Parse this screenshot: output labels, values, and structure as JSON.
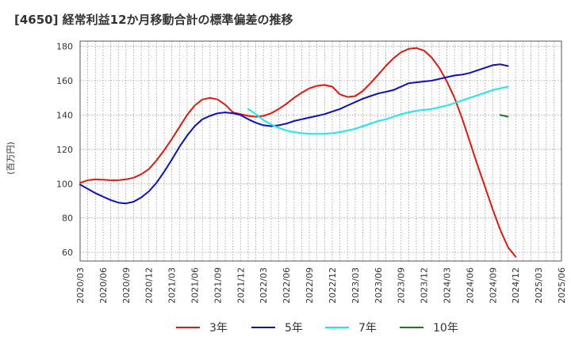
{
  "chart_data": {
    "type": "line",
    "title": "[4650]  経常利益12か月移動合計の標準偏差の推移",
    "ylabel": "(百万円)",
    "xlabel": "",
    "ylim": [
      55,
      183
    ],
    "yticks": [
      60,
      80,
      100,
      120,
      140,
      160,
      180
    ],
    "x": [
      "2020/03",
      "2020/04",
      "2020/05",
      "2020/06",
      "2020/07",
      "2020/08",
      "2020/09",
      "2020/10",
      "2020/11",
      "2020/12",
      "2021/01",
      "2021/02",
      "2021/03",
      "2021/04",
      "2021/05",
      "2021/06",
      "2021/07",
      "2021/08",
      "2021/09",
      "2021/10",
      "2021/11",
      "2021/12",
      "2022/01",
      "2022/02",
      "2022/03",
      "2022/04",
      "2022/05",
      "2022/06",
      "2022/07",
      "2022/08",
      "2022/09",
      "2022/10",
      "2022/11",
      "2022/12",
      "2023/01",
      "2023/02",
      "2023/03",
      "2023/04",
      "2023/05",
      "2023/06",
      "2023/07",
      "2023/08",
      "2023/09",
      "2023/10",
      "2023/11",
      "2023/12",
      "2024/01",
      "2024/02",
      "2024/03",
      "2024/04",
      "2024/05",
      "2024/06",
      "2024/07",
      "2024/08",
      "2024/09",
      "2024/10",
      "2024/11",
      "2024/12",
      "2025/01",
      "2025/02",
      "2025/03",
      "2025/04",
      "2025/05",
      "2025/06"
    ],
    "xticks": [
      "2020/03",
      "2020/06",
      "2020/09",
      "2020/12",
      "2021/03",
      "2021/06",
      "2021/09",
      "2021/12",
      "2022/03",
      "2022/06",
      "2022/09",
      "2022/12",
      "2023/03",
      "2023/06",
      "2023/09",
      "2023/12",
      "2024/03",
      "2024/06",
      "2024/09",
      "2024/12",
      "2025/03",
      "2025/06"
    ],
    "grid": true,
    "legend_position": "bottom",
    "series": [
      {
        "name": "3年",
        "color": "#e8160c",
        "values": [
          100.5,
          102,
          102.5,
          102.3,
          102,
          102,
          102.5,
          103.5,
          105.5,
          108.5,
          113.5,
          119.5,
          126,
          133,
          140,
          145.5,
          149,
          150,
          149,
          146,
          141.5,
          140.5,
          139.5,
          139,
          139.5,
          141,
          143.5,
          146.5,
          150,
          153,
          155.5,
          157,
          157.5,
          156.5,
          152,
          150.5,
          151,
          154,
          158.5,
          163.5,
          168.5,
          173,
          176.5,
          178.5,
          179,
          177.5,
          173.5,
          167.5,
          159.5,
          150,
          138,
          124.5,
          111,
          98,
          85,
          73,
          63,
          57.5,
          null,
          null,
          null,
          null,
          null,
          null
        ]
      },
      {
        "name": "5年",
        "color": "#0b10c3",
        "values": [
          99.5,
          97,
          94.5,
          92.5,
          90.5,
          89,
          88.5,
          89.5,
          92,
          95.5,
          100.5,
          107,
          114,
          121.5,
          128,
          133.5,
          137.5,
          139.5,
          141,
          141.5,
          141,
          140,
          137.5,
          135.5,
          134,
          133.5,
          134,
          135,
          136.5,
          137.5,
          138.5,
          139.5,
          140.5,
          142,
          143.5,
          145.5,
          147.5,
          149.5,
          151,
          152.5,
          153.5,
          154.5,
          156.5,
          158.5,
          159,
          159.5,
          160,
          161,
          162,
          163,
          163.5,
          164.5,
          166,
          167.5,
          169,
          169.5,
          168.5,
          null,
          null,
          null,
          null,
          null,
          null,
          null
        ]
      },
      {
        "name": "7年",
        "color": "#19e8f0",
        "values": [
          null,
          null,
          null,
          null,
          null,
          null,
          null,
          null,
          null,
          null,
          null,
          null,
          null,
          null,
          null,
          null,
          null,
          null,
          null,
          null,
          null,
          null,
          143.5,
          140.5,
          137,
          134.5,
          132.5,
          131,
          130,
          129.5,
          129,
          129,
          129,
          129.5,
          130,
          131,
          132,
          133.5,
          135,
          136.5,
          137.5,
          139,
          140.5,
          141.5,
          142.5,
          143,
          143.5,
          144.5,
          145.5,
          147,
          148.5,
          150,
          151.5,
          153,
          154.5,
          155.5,
          156.5,
          null,
          null,
          null,
          null,
          null,
          null,
          null
        ]
      },
      {
        "name": "10年",
        "color": "#21781e",
        "values": [
          null,
          null,
          null,
          null,
          null,
          null,
          null,
          null,
          null,
          null,
          null,
          null,
          null,
          null,
          null,
          null,
          null,
          null,
          null,
          null,
          null,
          null,
          null,
          null,
          null,
          null,
          null,
          null,
          null,
          null,
          null,
          null,
          null,
          null,
          null,
          null,
          null,
          null,
          null,
          null,
          null,
          null,
          null,
          null,
          null,
          null,
          null,
          null,
          null,
          null,
          null,
          null,
          null,
          null,
          null,
          140,
          139,
          null,
          null,
          null,
          null,
          null,
          null,
          null
        ]
      }
    ]
  }
}
